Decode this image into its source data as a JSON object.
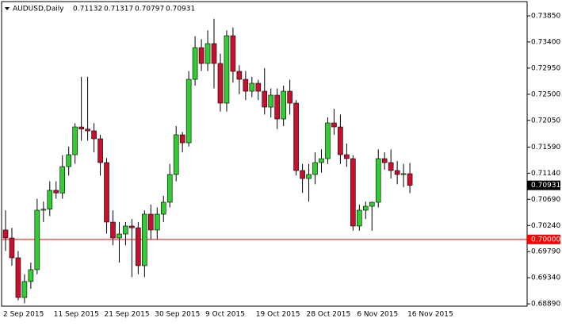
{
  "chart_data": {
    "type": "candlestick",
    "symbol": "AUDUSD,Daily",
    "categories": [
      "2 Sep 2015",
      null,
      null,
      null,
      null,
      null,
      null,
      null,
      "11 Sep 2015",
      null,
      null,
      null,
      null,
      null,
      null,
      null,
      "21 Sep 2015",
      null,
      null,
      null,
      null,
      null,
      null,
      null,
      "30 Sep 2015",
      null,
      null,
      null,
      null,
      null,
      null,
      null,
      "9 Oct 2015",
      null,
      null,
      null,
      null,
      null,
      null,
      null,
      "19 Oct 2015",
      null,
      null,
      null,
      null,
      null,
      null,
      null,
      "28 Oct 2015",
      null,
      null,
      null,
      null,
      null,
      null,
      null,
      "6 Nov 2015",
      null,
      null,
      null,
      null,
      null,
      null,
      null,
      "16 Nov 2015"
    ],
    "open": [
      0.70162,
      0.70025,
      0.69683,
      0.69,
      0.69274,
      0.69479,
      0.70503,
      0.7052,
      0.70845,
      0.708,
      0.71254,
      0.71459,
      0.71937,
      0.719,
      0.71869,
      0.71733,
      0.71323,
      0.70298,
      0.70025,
      0.70093,
      0.7023,
      0.702,
      0.69547,
      0.70435,
      0.70162,
      0.70435,
      0.7064,
      0.71118,
      0.71801,
      0.71664,
      0.72757,
      0.73303,
      0.7303,
      0.73372,
      0.7303,
      0.72347,
      0.73508,
      0.72894,
      0.72757,
      0.72552,
      0.72689,
      0.72552,
      0.72279,
      0.72484,
      0.72074,
      0.72552,
      0.72347,
      0.71186,
      0.71049,
      0.71118,
      0.71323,
      0.71391,
      0.72006,
      0.71937,
      0.71459,
      0.71391,
      0.7023,
      0.70503,
      0.70571,
      0.7064,
      0.71391,
      0.71323,
      0.71186,
      0.71118,
      0.71132
    ],
    "high": [
      0.705,
      0.702,
      0.698,
      0.694,
      0.696,
      0.707,
      0.7065,
      0.71,
      0.71,
      0.7145,
      0.716,
      0.72,
      0.728,
      0.728,
      0.72,
      0.718,
      0.714,
      0.705,
      0.703,
      0.703,
      0.7035,
      0.703,
      0.705,
      0.706,
      0.7055,
      0.7075,
      0.713,
      0.7195,
      0.7185,
      0.729,
      0.735,
      0.7345,
      0.736,
      0.738,
      0.732,
      0.736,
      0.7365,
      0.73,
      0.729,
      0.728,
      0.7275,
      0.7295,
      0.726,
      0.726,
      0.7265,
      0.7275,
      0.724,
      0.713,
      0.713,
      0.715,
      0.7155,
      0.721,
      0.7225,
      0.7215,
      0.7165,
      0.7145,
      0.706,
      0.7065,
      0.7065,
      0.7155,
      0.715,
      0.7155,
      0.7135,
      0.713,
      0.71317
    ],
    "low": [
      0.698,
      0.6955,
      0.6895,
      0.689,
      0.6915,
      0.694,
      0.703,
      0.704,
      0.707,
      0.707,
      0.711,
      0.713,
      0.717,
      0.717,
      0.715,
      0.711,
      0.701,
      0.699,
      0.696,
      0.699,
      0.6935,
      0.694,
      0.6935,
      0.7,
      0.7,
      0.703,
      0.7055,
      0.71,
      0.715,
      0.716,
      0.7265,
      0.729,
      0.729,
      0.726,
      0.722,
      0.722,
      0.727,
      0.725,
      0.724,
      0.7245,
      0.724,
      0.7215,
      0.721,
      0.719,
      0.7195,
      0.7215,
      0.711,
      0.708,
      0.7065,
      0.7095,
      0.7115,
      0.713,
      0.718,
      0.713,
      0.7125,
      0.7015,
      0.7015,
      0.7035,
      0.7015,
      0.7055,
      0.712,
      0.7105,
      0.7095,
      0.709,
      0.70797
    ],
    "close": [
      0.70025,
      0.69683,
      0.69,
      0.69274,
      0.69479,
      0.70503,
      0.7052,
      0.70845,
      0.708,
      0.71254,
      0.71459,
      0.71937,
      0.719,
      0.71869,
      0.71733,
      0.71323,
      0.70298,
      0.70025,
      0.70093,
      0.7023,
      0.702,
      0.69547,
      0.70435,
      0.70162,
      0.70435,
      0.7064,
      0.71118,
      0.71801,
      0.71664,
      0.72757,
      0.73303,
      0.7303,
      0.73372,
      0.7303,
      0.72347,
      0.73508,
      0.72894,
      0.72757,
      0.72552,
      0.72689,
      0.72552,
      0.72279,
      0.72484,
      0.72074,
      0.72552,
      0.72347,
      0.71186,
      0.71049,
      0.71118,
      0.71323,
      0.71391,
      0.72006,
      0.71937,
      0.71459,
      0.71391,
      0.7023,
      0.70503,
      0.70571,
      0.7064,
      0.71391,
      0.71323,
      0.71186,
      0.71118,
      0.71132,
      0.70931
    ],
    "up_color": "#32cd32",
    "down_color": "#c8102e",
    "wick_color": "#000000",
    "ylim": [
      0.6885,
      0.74096
    ],
    "yticks": [
      {
        "value": 0.7385,
        "label": "0.73850"
      },
      {
        "value": 0.734,
        "label": "0.73400"
      },
      {
        "value": 0.7295,
        "label": "0.72950"
      },
      {
        "value": 0.725,
        "label": "0.72500"
      },
      {
        "value": 0.7205,
        "label": "0.72050"
      },
      {
        "value": 0.7159,
        "label": "0.71590"
      },
      {
        "value": 0.7114,
        "label": "0.71140"
      },
      {
        "value": 0.7069,
        "label": "0.70690"
      },
      {
        "value": 0.7024,
        "label": "0.70240"
      },
      {
        "value": 0.6979,
        "label": "0.69790"
      },
      {
        "value": 0.6934,
        "label": "0.69340"
      },
      {
        "value": 0.6889,
        "label": "0.68890"
      }
    ],
    "hline": {
      "value": 0.7,
      "label": "0.70000",
      "color": "#ff0000"
    }
  }
}
